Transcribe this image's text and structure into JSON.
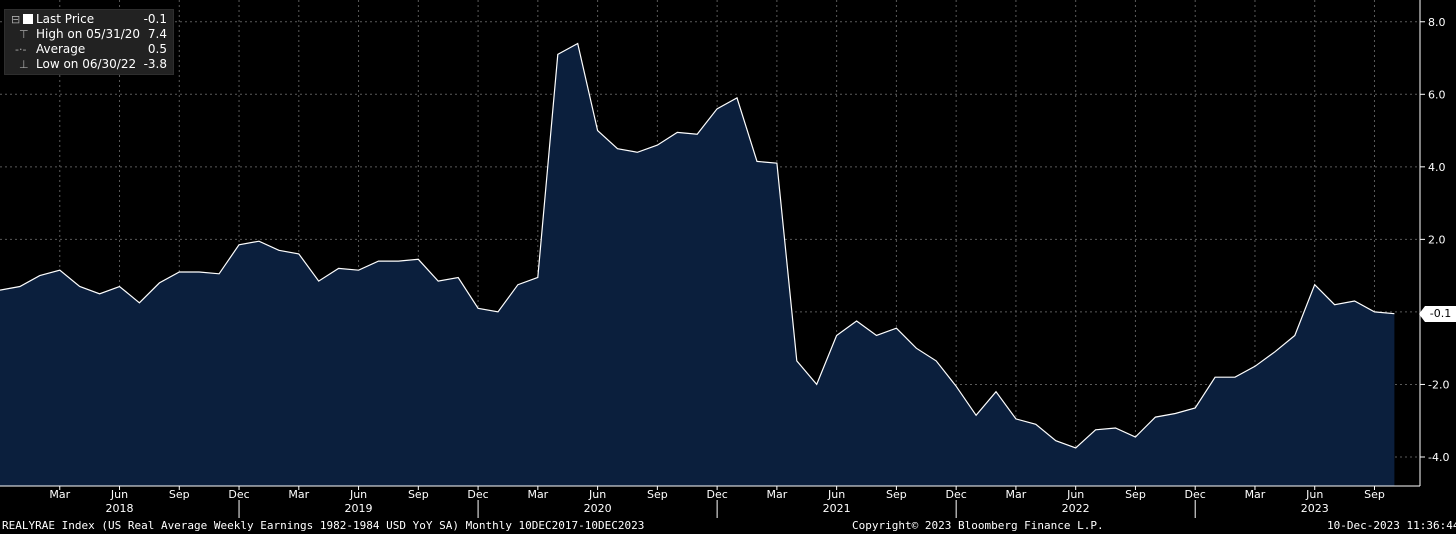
{
  "chart_data": {
    "type": "area",
    "series": [
      {
        "name": "Last Price",
        "x": [
          "2017-12",
          "2018-01",
          "2018-02",
          "2018-03",
          "2018-04",
          "2018-05",
          "2018-06",
          "2018-07",
          "2018-08",
          "2018-09",
          "2018-10",
          "2018-11",
          "2018-12",
          "2019-01",
          "2019-02",
          "2019-03",
          "2019-04",
          "2019-05",
          "2019-06",
          "2019-07",
          "2019-08",
          "2019-09",
          "2019-10",
          "2019-11",
          "2019-12",
          "2020-01",
          "2020-02",
          "2020-03",
          "2020-04",
          "2020-05",
          "2020-06",
          "2020-07",
          "2020-08",
          "2020-09",
          "2020-10",
          "2020-11",
          "2020-12",
          "2021-01",
          "2021-02",
          "2021-03",
          "2021-04",
          "2021-05",
          "2021-06",
          "2021-07",
          "2021-08",
          "2021-09",
          "2021-10",
          "2021-11",
          "2021-12",
          "2022-01",
          "2022-02",
          "2022-03",
          "2022-04",
          "2022-05",
          "2022-06",
          "2022-07",
          "2022-08",
          "2022-09",
          "2022-10",
          "2022-11",
          "2022-12",
          "2023-01",
          "2023-02",
          "2023-03",
          "2023-04",
          "2023-05",
          "2023-06",
          "2023-07",
          "2023-08",
          "2023-09",
          "2023-10"
        ],
        "values": [
          0.6,
          0.7,
          1.0,
          1.15,
          0.7,
          0.5,
          0.7,
          0.25,
          0.8,
          1.1,
          1.1,
          1.05,
          1.85,
          1.95,
          1.7,
          1.6,
          0.85,
          1.2,
          1.15,
          1.4,
          1.4,
          1.45,
          0.85,
          0.95,
          0.1,
          0.0,
          0.75,
          0.95,
          7.1,
          7.4,
          5.0,
          4.5,
          4.4,
          4.6,
          4.95,
          4.9,
          5.6,
          5.9,
          4.15,
          4.1,
          -1.35,
          -2.0,
          -0.65,
          -0.25,
          -0.65,
          -0.45,
          -1.0,
          -1.35,
          -2.05,
          -2.85,
          -2.2,
          -2.95,
          -3.1,
          -3.55,
          -3.75,
          -3.25,
          -3.2,
          -3.45,
          -2.9,
          -2.8,
          -2.65,
          -1.8,
          -1.8,
          -1.5,
          -1.1,
          -0.65,
          0.75,
          0.2,
          0.3,
          0.0,
          -0.05
        ]
      }
    ],
    "y_ticks": [
      "8.0",
      "6.0",
      "4.0",
      "2.0",
      "-2.0",
      "-4.0"
    ],
    "y_tick_values": [
      8,
      6,
      4,
      2,
      -2,
      -4
    ],
    "ylim": [
      -4.8,
      8.6
    ],
    "month_labels": [
      "Mar",
      "Jun",
      "Sep",
      "Dec",
      "Mar",
      "Jun",
      "Sep",
      "Dec",
      "Mar",
      "Jun",
      "Sep",
      "Dec",
      "Mar",
      "Jun",
      "Sep",
      "Dec",
      "Mar",
      "Jun",
      "Sep",
      "Dec",
      "Mar",
      "Jun",
      "Sep"
    ],
    "month_label_dates": [
      "2018-03",
      "2018-06",
      "2018-09",
      "2018-12",
      "2019-03",
      "2019-06",
      "2019-09",
      "2019-12",
      "2020-03",
      "2020-06",
      "2020-09",
      "2020-12",
      "2021-03",
      "2021-06",
      "2021-09",
      "2021-12",
      "2022-03",
      "2022-06",
      "2022-09",
      "2022-12",
      "2023-03",
      "2023-06",
      "2023-09"
    ],
    "year_labels": [
      "2018",
      "2019",
      "2020",
      "2021",
      "2022",
      "2023"
    ],
    "year_label_dates": [
      "2018-06",
      "2019-06",
      "2020-06",
      "2021-06",
      "2022-06",
      "2023-06"
    ],
    "year_separator_dates": [
      "2018-12",
      "2019-12",
      "2020-12",
      "2021-12",
      "2022-12"
    ],
    "last_value_label": "-0.1",
    "grid": true,
    "colors": {
      "background": "#000000",
      "area_fill": "#0b1f3d",
      "line": "#ffffff",
      "grid": "#5a5a5a"
    }
  },
  "legend": {
    "items": [
      {
        "label": "Last Price",
        "value": "-0.1"
      },
      {
        "label": "High on 05/31/20",
        "value": "7.4"
      },
      {
        "label": "Average",
        "value": "0.5"
      },
      {
        "label": "Low on 06/30/22",
        "value": "-3.8"
      }
    ]
  },
  "footer": {
    "left": "REALYRAE Index (US Real Average Weekly Earnings 1982-1984 USD YoY SA)  Monthly 10DEC2017-10DEC2023",
    "center": "Copyright© 2023 Bloomberg Finance L.P.",
    "right": "10-Dec-2023 11:36:44"
  }
}
